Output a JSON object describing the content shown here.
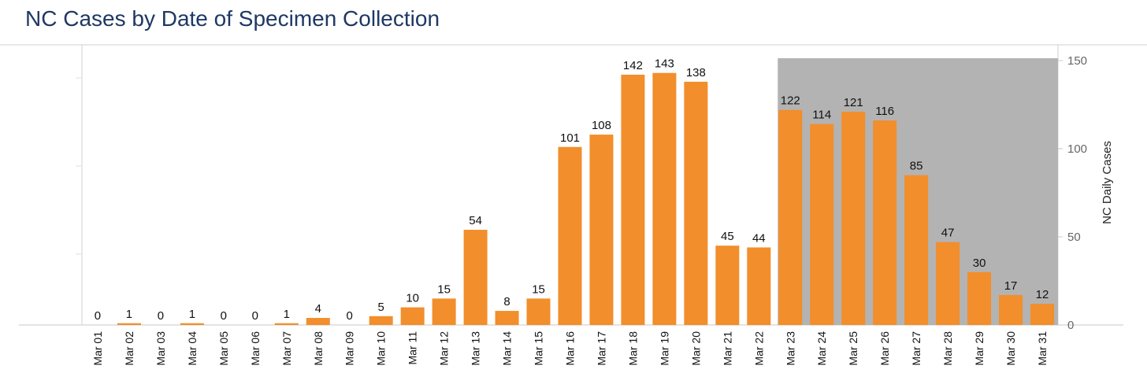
{
  "chart_data": {
    "type": "bar",
    "title": "NC Cases by Date of Specimen Collection",
    "ylabel": "NC Daily Cases",
    "xlabel": "",
    "ylim": [
      0,
      150
    ],
    "yticks": [
      0,
      50,
      100,
      150
    ],
    "categories": [
      "Mar 01",
      "Mar 02",
      "Mar 03",
      "Mar 04",
      "Mar 05",
      "Mar 06",
      "Mar 07",
      "Mar 08",
      "Mar 09",
      "Mar 10",
      "Mar 11",
      "Mar 12",
      "Mar 13",
      "Mar 14",
      "Mar 15",
      "Mar 16",
      "Mar 17",
      "Mar 18",
      "Mar 19",
      "Mar 20",
      "Mar 21",
      "Mar 22",
      "Mar 23",
      "Mar 24",
      "Mar 25",
      "Mar 26",
      "Mar 27",
      "Mar 28",
      "Mar 29",
      "Mar 30",
      "Mar 31"
    ],
    "values": [
      0,
      1,
      0,
      1,
      0,
      0,
      1,
      4,
      0,
      5,
      10,
      15,
      54,
      8,
      15,
      101,
      108,
      142,
      143,
      138,
      45,
      44,
      122,
      114,
      121,
      116,
      85,
      47,
      30,
      17,
      12
    ],
    "shaded_range": [
      "Mar 23",
      "Mar 31"
    ],
    "bar_color": "#f28e2b",
    "shade_color": "#b3b3b3",
    "grid": false,
    "y_axis_side": "right"
  }
}
